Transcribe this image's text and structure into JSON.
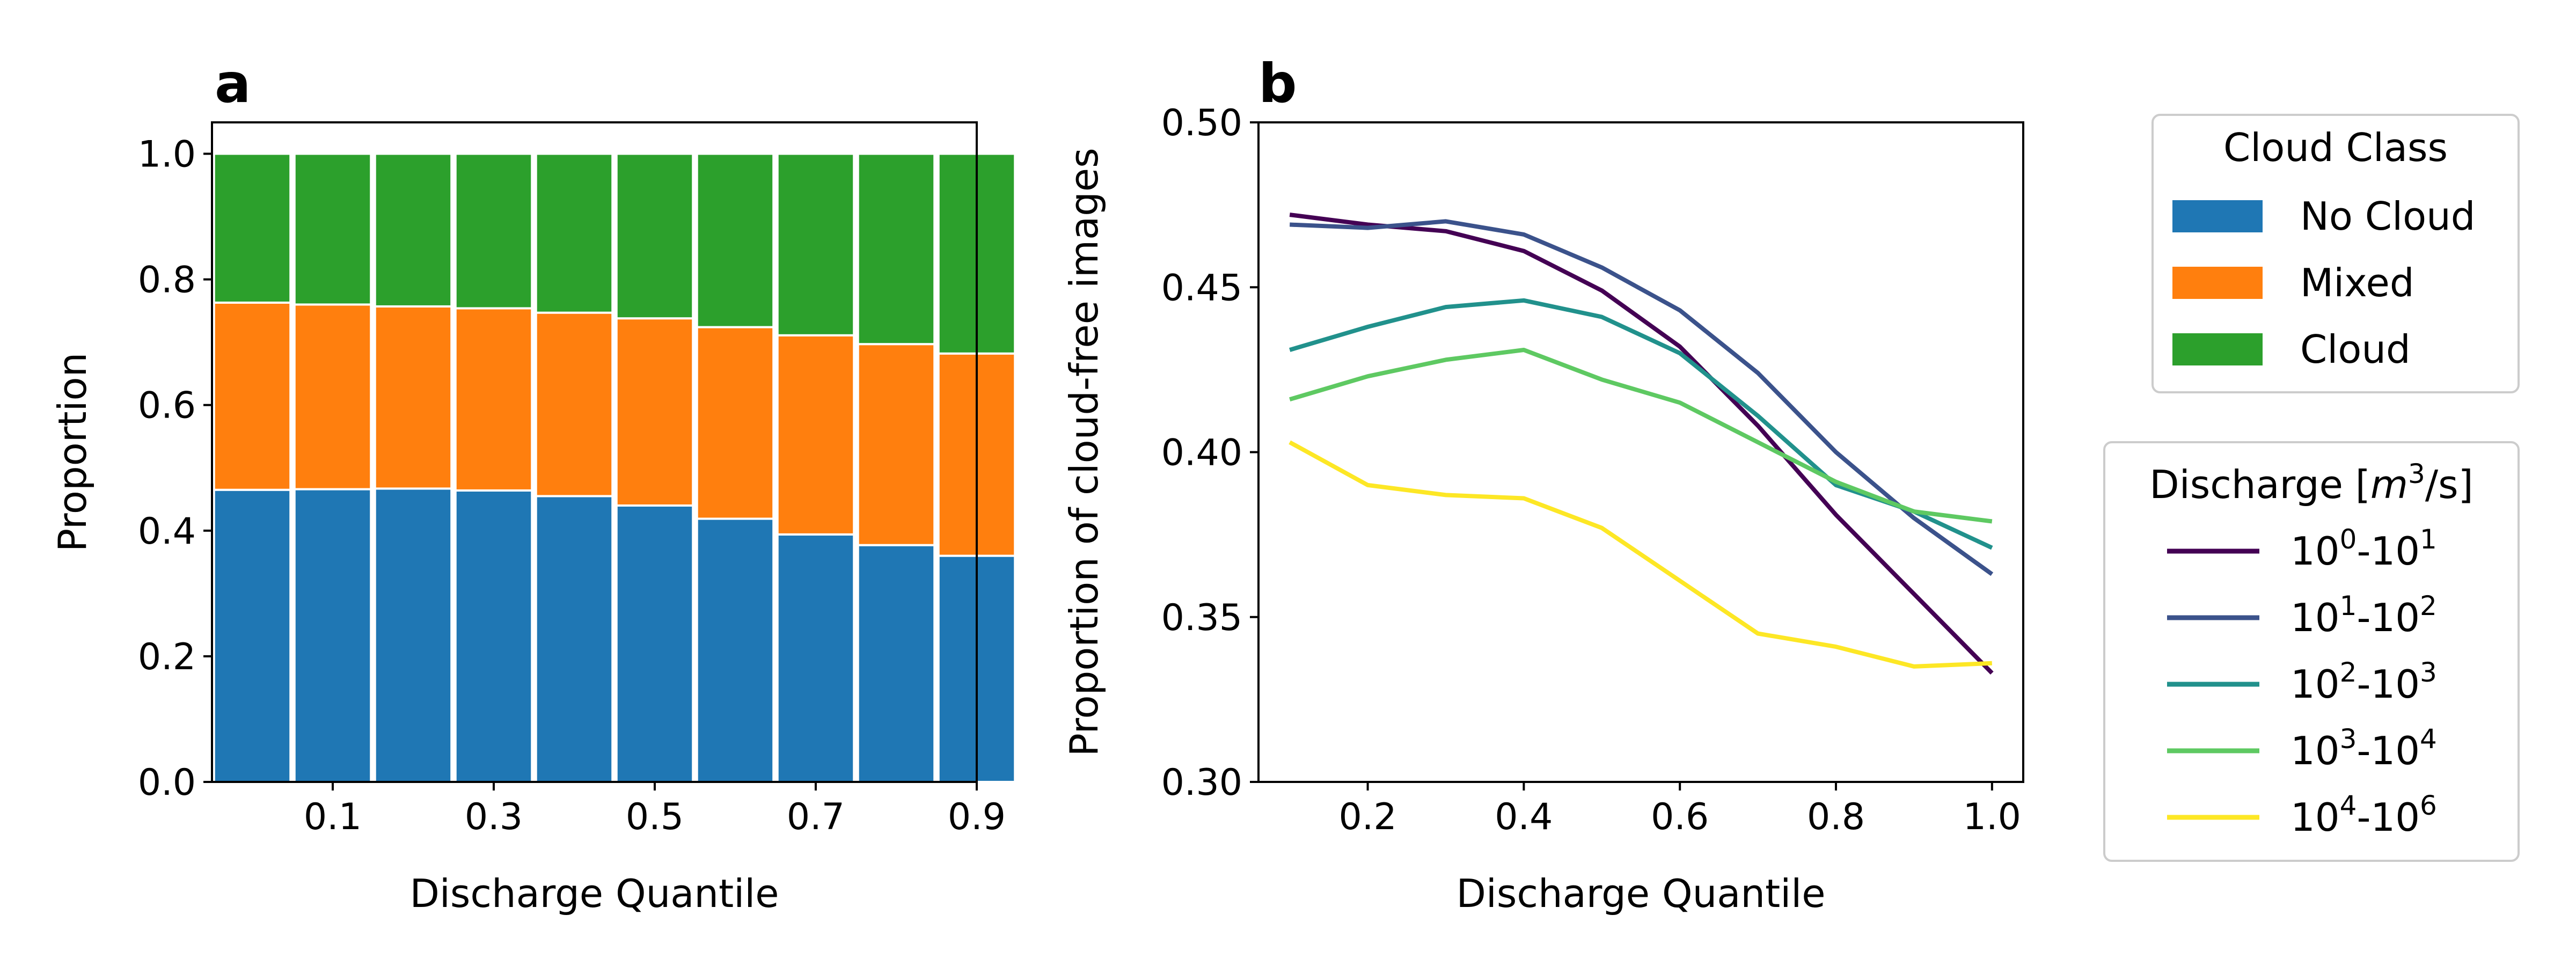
{
  "chart_data": [
    {
      "panel": "a",
      "type": "bar",
      "stacked": true,
      "xlabel": "Discharge Quantile",
      "ylabel": "Proportion",
      "ylim": [
        0,
        1.05
      ],
      "xlim": [
        -0.05,
        0.9
      ],
      "bar_width": 0.095,
      "x": [
        0.0,
        0.1,
        0.2,
        0.3,
        0.4,
        0.5,
        0.6,
        0.7,
        0.8,
        0.9
      ],
      "xticks": [
        0.1,
        0.3,
        0.5,
        0.7,
        0.9
      ],
      "xtick_labels": [
        "0.1",
        "0.3",
        "0.5",
        "0.7",
        "0.9"
      ],
      "yticks": [
        0,
        0.2,
        0.4,
        0.6,
        0.8,
        1.0
      ],
      "ytick_labels": [
        "0.0",
        "0.2",
        "0.4",
        "0.6",
        "0.8",
        "1.0"
      ],
      "series": [
        {
          "name": "No Cloud",
          "color": "#1f77b4",
          "values": [
            0.465,
            0.466,
            0.467,
            0.464,
            0.455,
            0.44,
            0.419,
            0.394,
            0.377,
            0.36
          ]
        },
        {
          "name": "Mixed",
          "color": "#ff7f0e",
          "values": [
            0.298,
            0.294,
            0.29,
            0.29,
            0.292,
            0.298,
            0.305,
            0.317,
            0.32,
            0.322
          ]
        },
        {
          "name": "Cloud",
          "color": "#2ca02c",
          "values": [
            0.237,
            0.24,
            0.243,
            0.246,
            0.253,
            0.262,
            0.276,
            0.289,
            0.303,
            0.318
          ]
        }
      ],
      "legend": {
        "title": "Cloud Class",
        "placement": "outside-right-top"
      }
    },
    {
      "panel": "b",
      "type": "line",
      "xlabel": "Discharge Quantile",
      "ylabel": "Proportion of cloud-free images",
      "xlim": [
        0.06,
        1.04
      ],
      "ylim": [
        0.3,
        0.5
      ],
      "x": [
        0.1,
        0.2,
        0.3,
        0.4,
        0.5,
        0.6,
        0.7,
        0.8,
        0.9,
        1.0
      ],
      "xticks": [
        0.2,
        0.4,
        0.6,
        0.8,
        1.0
      ],
      "xtick_labels": [
        "0.2",
        "0.4",
        "0.6",
        "0.8",
        "1.0"
      ],
      "yticks": [
        0.3,
        0.35,
        0.4,
        0.45,
        0.5
      ],
      "ytick_labels": [
        "0.30",
        "0.35",
        "0.40",
        "0.45",
        "0.50"
      ],
      "series": [
        {
          "base1": "10",
          "exp1": "0",
          "base2": "10",
          "exp2": "1",
          "color": "#440154",
          "values": [
            0.472,
            0.469,
            0.467,
            0.461,
            0.449,
            0.432,
            0.408,
            0.381,
            0.357,
            0.333
          ]
        },
        {
          "base1": "10",
          "exp1": "1",
          "base2": "10",
          "exp2": "2",
          "color": "#3b528b",
          "values": [
            0.469,
            0.468,
            0.47,
            0.466,
            0.456,
            0.443,
            0.424,
            0.4,
            0.38,
            0.363
          ]
        },
        {
          "base1": "10",
          "exp1": "2",
          "base2": "10",
          "exp2": "3",
          "color": "#21918c",
          "values": [
            0.431,
            0.438,
            0.444,
            0.446,
            0.441,
            0.43,
            0.411,
            0.39,
            0.382,
            0.371
          ]
        },
        {
          "base1": "10",
          "exp1": "3",
          "base2": "10",
          "exp2": "4",
          "color": "#5ec962",
          "values": [
            0.416,
            0.423,
            0.428,
            0.431,
            0.422,
            0.415,
            0.403,
            0.391,
            0.382,
            0.379
          ]
        },
        {
          "base1": "10",
          "exp1": "4",
          "base2": "10",
          "exp2": "6",
          "color": "#fde725",
          "values": [
            0.403,
            0.39,
            0.387,
            0.386,
            0.377,
            0.361,
            0.345,
            0.341,
            0.335,
            0.336
          ]
        }
      ],
      "legend": {
        "title": "Discharge [m³/s]",
        "title_prefix": "Discharge [",
        "title_var": "m",
        "title_exp": "3",
        "title_suffix": "/s]",
        "placement": "outside-right-bottom"
      }
    }
  ]
}
